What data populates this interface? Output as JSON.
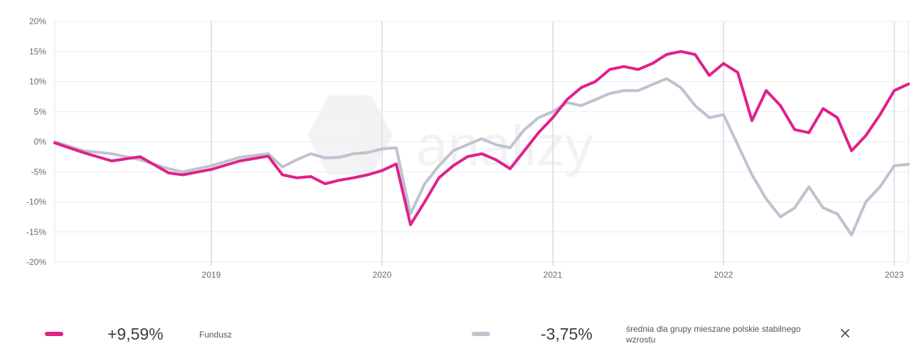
{
  "chart_data": {
    "type": "line",
    "title": "",
    "xlabel": "",
    "ylabel": "",
    "ylim": [
      -20,
      20
    ],
    "y_ticks": [
      "20%",
      "15%",
      "10%",
      "5%",
      "0%",
      "-5%",
      "-10%",
      "-15%",
      "-20%"
    ],
    "x_ticks": [
      "2019",
      "2020",
      "2021",
      "2022",
      "2023"
    ],
    "x_range": [
      "2018-02",
      "2023-02"
    ],
    "grid": true,
    "legend_position": "bottom",
    "watermark": "analizy.pl",
    "series": [
      {
        "name": "Fundusz",
        "color": "#e0218a",
        "x": [
          "2018-02",
          "2018-04",
          "2018-06",
          "2018-08",
          "2018-10",
          "2018-11",
          "2019-01",
          "2019-03",
          "2019-05",
          "2019-06",
          "2019-07",
          "2019-08",
          "2019-09",
          "2019-10",
          "2019-11",
          "2019-12",
          "2020-01",
          "2020-02",
          "2020-03",
          "2020-04",
          "2020-05",
          "2020-06",
          "2020-07",
          "2020-08",
          "2020-09",
          "2020-10",
          "2020-11",
          "2020-12",
          "2021-01",
          "2021-02",
          "2021-03",
          "2021-04",
          "2021-05",
          "2021-06",
          "2021-07",
          "2021-08",
          "2021-09",
          "2021-10",
          "2021-11",
          "2021-12",
          "2022-01",
          "2022-02",
          "2022-03",
          "2022-04",
          "2022-05",
          "2022-06",
          "2022-07",
          "2022-08",
          "2022-09",
          "2022-10",
          "2022-11",
          "2022-12",
          "2023-01",
          "2023-02"
        ],
        "values": [
          -0.2,
          -1.8,
          -3.2,
          -2.5,
          -5.2,
          -5.5,
          -4.6,
          -3.2,
          -2.4,
          -5.5,
          -6.0,
          -5.8,
          -7.0,
          -6.4,
          -6.0,
          -5.5,
          -4.8,
          -3.7,
          -13.8,
          -10.0,
          -6.0,
          -4.0,
          -2.5,
          -2.0,
          -3.0,
          -4.5,
          -1.5,
          1.5,
          4.0,
          7.0,
          9.0,
          10.0,
          12.0,
          12.5,
          12.0,
          13.0,
          14.5,
          15.0,
          14.5,
          11.0,
          13.0,
          11.5,
          3.5,
          8.5,
          6.0,
          2.0,
          1.5,
          5.5,
          4.0,
          -1.5,
          1.0,
          4.5,
          8.5,
          9.59
        ]
      },
      {
        "name": "średnia dla grupy mieszane polskie stabilnego wzrostu",
        "color": "#bdc3cf",
        "x": [
          "2018-02",
          "2018-04",
          "2018-06",
          "2018-08",
          "2018-10",
          "2018-11",
          "2019-01",
          "2019-03",
          "2019-05",
          "2019-06",
          "2019-07",
          "2019-08",
          "2019-09",
          "2019-10",
          "2019-11",
          "2019-12",
          "2020-01",
          "2020-02",
          "2020-03",
          "2020-04",
          "2020-05",
          "2020-06",
          "2020-07",
          "2020-08",
          "2020-09",
          "2020-10",
          "2020-11",
          "2020-12",
          "2021-01",
          "2021-02",
          "2021-03",
          "2021-04",
          "2021-05",
          "2021-06",
          "2021-07",
          "2021-08",
          "2021-09",
          "2021-10",
          "2021-11",
          "2021-12",
          "2022-01",
          "2022-02",
          "2022-03",
          "2022-04",
          "2022-05",
          "2022-06",
          "2022-07",
          "2022-08",
          "2022-09",
          "2022-10",
          "2022-11",
          "2022-12",
          "2023-01",
          "2023-02"
        ],
        "values": [
          0.0,
          -1.5,
          -2.0,
          -3.0,
          -4.5,
          -5.0,
          -4.0,
          -2.6,
          -2.0,
          -4.2,
          -3.0,
          -2.0,
          -2.7,
          -2.6,
          -2.0,
          -1.8,
          -1.2,
          -1.0,
          -12.0,
          -7.0,
          -4.0,
          -1.5,
          -0.5,
          0.5,
          -0.5,
          -1.0,
          2.0,
          4.0,
          5.0,
          6.5,
          6.0,
          7.0,
          8.0,
          8.5,
          8.5,
          9.5,
          10.5,
          9.0,
          6.0,
          4.0,
          4.5,
          -0.5,
          -5.5,
          -9.5,
          -12.5,
          -11.0,
          -7.5,
          -11.0,
          -12.0,
          -15.5,
          -10.0,
          -7.5,
          -4.0,
          -3.75
        ]
      }
    ]
  },
  "legend": {
    "fund": {
      "value": "+9,59%",
      "label": "Fundusz",
      "color": "#e0218a"
    },
    "group": {
      "value": "-3,75%",
      "label_line1": "średnia dla grupy mieszane polskie stabilnego",
      "label_line2": "wzrostu",
      "color": "#bdc3cf"
    }
  },
  "icons": {
    "close": "close-icon"
  }
}
